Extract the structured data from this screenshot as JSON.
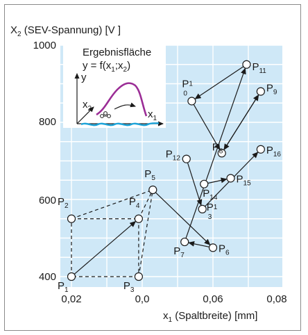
{
  "chart_data": {
    "type": "scatter",
    "ylabel": "X",
    "ylabel_sub": "2",
    "ylabel_rest": " (SEV-Spannung) [V ]",
    "xlabel": "x",
    "xlabel_sub": "1",
    "xlabel_rest": " (Spaltbreite) [mm]",
    "x_ticks": [
      "0,02",
      "0,0",
      "0,06",
      "0,08"
    ],
    "y_ticks": [
      "400",
      "600",
      "800",
      "1000"
    ],
    "ylim": [
      370,
      1000
    ],
    "grid": true,
    "colors": {
      "plot_bg": "#cfe8f7",
      "grid": "#ffffff",
      "point_fill": "#ffffff",
      "stroke": "#1a1a1a",
      "surface": "#9b2d96",
      "water": "#1aa3d9"
    },
    "points": [
      {
        "id": "P1",
        "label": "P",
        "sub": "1",
        "x": 0.02,
        "y": 400
      },
      {
        "id": "P2",
        "label": "P",
        "sub": "2",
        "x": 0.02,
        "y": 550
      },
      {
        "id": "P3",
        "label": "P",
        "sub": "3",
        "x": 0.039,
        "y": 400
      },
      {
        "id": "P4",
        "label": "P",
        "sub": "4",
        "x": 0.039,
        "y": 550
      },
      {
        "id": "P5",
        "label": "P",
        "sub": "5",
        "x": 0.043,
        "y": 625
      },
      {
        "id": "P6",
        "label": "P",
        "sub": "6",
        "x": 0.06,
        "y": 475
      },
      {
        "id": "P7",
        "label": "P",
        "sub": "7",
        "x": 0.052,
        "y": 490
      },
      {
        "id": "P8",
        "label": "P",
        "sub": "8",
        "x": 0.0625,
        "y": 720
      },
      {
        "id": "P9",
        "label": "P",
        "sub": "9",
        "x": 0.0735,
        "y": 880
      },
      {
        "id": "P10",
        "label": "P",
        "sub": "1",
        "sub2": "0",
        "x": 0.054,
        "y": 855
      },
      {
        "id": "P11",
        "label": "P",
        "sub": "11",
        "x": 0.0695,
        "y": 950
      },
      {
        "id": "P12",
        "label": "P",
        "sub": "12",
        "x": 0.0525,
        "y": 705
      },
      {
        "id": "P13",
        "label": "P",
        "sub": "1",
        "sub2": "3",
        "x": 0.057,
        "y": 575
      },
      {
        "id": "P14",
        "label": "P",
        "sub": "14",
        "x": 0.0575,
        "y": 640
      },
      {
        "id": "P15",
        "label": "P",
        "sub": "15",
        "x": 0.065,
        "y": 655
      },
      {
        "id": "P16",
        "label": "P",
        "sub": "16",
        "x": 0.0735,
        "y": 730
      }
    ],
    "dashed_edges": [
      [
        "P1",
        "P2"
      ],
      [
        "P2",
        "P4"
      ],
      [
        "P4",
        "P3"
      ],
      [
        "P3",
        "P1"
      ],
      [
        "P2",
        "P5"
      ],
      [
        "P4",
        "P5"
      ],
      [
        "P3",
        "P5"
      ]
    ],
    "arrows": [
      [
        "P1",
        "P4"
      ],
      [
        "P5",
        "P6"
      ],
      [
        "P6",
        "P7"
      ],
      [
        "P7",
        "P11"
      ],
      [
        "P11",
        "P10"
      ],
      [
        "P10",
        "P8"
      ],
      [
        "P8",
        "P9"
      ],
      [
        "P9",
        "P8"
      ],
      [
        "P12",
        "P13"
      ],
      [
        "P13",
        "P16"
      ],
      [
        "P14",
        "P15"
      ]
    ],
    "inset": {
      "title": "Ergebnisfläche",
      "formula_pre": "y = f(x",
      "formula_sub1": "1",
      "formula_mid": ";x",
      "formula_sub2": "2",
      "formula_post": ")",
      "axis_y": "y",
      "axis_x1": "x",
      "axis_x1_sub": "1",
      "axis_x2": "x",
      "axis_x2_sub": "2"
    }
  }
}
